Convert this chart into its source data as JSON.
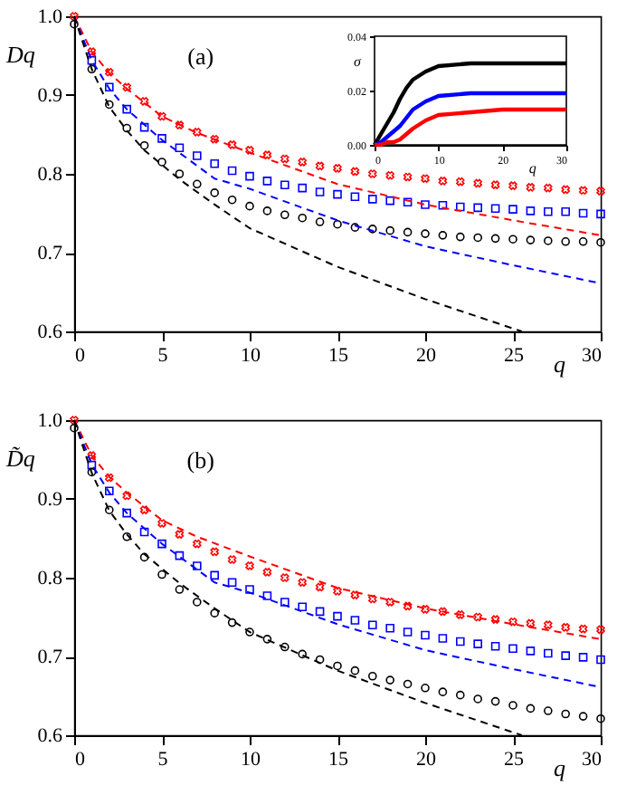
{
  "chart_data": [
    {
      "type": "scatter",
      "ylabel": "Dq",
      "xlabel": "q",
      "annotations": [
        "(a)"
      ],
      "xlim": [
        0,
        30
      ],
      "ylim": [
        0.6,
        1.0
      ],
      "xticks": [
        0,
        5,
        10,
        15,
        20,
        25,
        30
      ],
      "yticks": [
        0.6,
        0.7,
        0.8,
        0.9,
        {
          "value": 1.0,
          "label": "1.0"
        }
      ],
      "x": [
        0,
        1,
        2,
        3,
        4,
        5,
        6,
        7,
        8,
        9,
        10,
        11,
        12,
        13,
        14,
        15,
        16,
        17,
        18,
        19,
        20,
        21,
        22,
        23,
        24,
        25,
        26,
        27,
        28,
        29,
        30
      ],
      "series": [
        {
          "color": "#ff0000",
          "marker": "cross",
          "values": [
            1.0,
            0.955,
            0.929,
            0.91,
            0.892,
            0.873,
            0.862,
            0.853,
            0.844,
            0.837,
            0.83,
            0.824,
            0.819,
            0.815,
            0.81,
            0.807,
            0.803,
            0.8,
            0.798,
            0.796,
            0.794,
            0.791,
            0.79,
            0.788,
            0.786,
            0.785,
            0.783,
            0.782,
            0.78,
            0.779,
            0.778
          ]
        },
        {
          "color": "#0000ff",
          "marker": "square",
          "values": [
            null,
            0.944,
            0.91,
            0.882,
            0.859,
            0.845,
            0.833,
            0.823,
            0.813,
            0.804,
            0.797,
            0.791,
            0.786,
            0.782,
            0.777,
            0.774,
            0.771,
            0.768,
            0.766,
            0.764,
            0.761,
            0.76,
            0.758,
            0.757,
            0.756,
            0.755,
            0.753,
            0.752,
            0.752,
            0.75,
            0.749
          ]
        },
        {
          "color": "#000000",
          "marker": "circle",
          "values": [
            0.99,
            0.933,
            0.888,
            0.858,
            0.836,
            0.815,
            0.8,
            0.787,
            0.776,
            0.767,
            0.759,
            0.753,
            0.748,
            0.744,
            0.739,
            0.736,
            0.732,
            0.73,
            0.728,
            0.726,
            0.724,
            0.722,
            0.72,
            0.719,
            0.718,
            0.717,
            0.716,
            0.715,
            0.714,
            0.714,
            0.713
          ]
        },
        {
          "type": "line",
          "line_style": "dashed",
          "color": "#ff0000",
          "x": [
            0,
            1,
            2,
            3,
            5,
            7,
            10,
            15,
            20,
            25,
            30
          ],
          "values": [
            1.0,
            0.955,
            0.928,
            0.908,
            0.873,
            0.852,
            0.827,
            0.787,
            0.761,
            0.741,
            0.722
          ]
        },
        {
          "type": "line",
          "line_style": "dashed",
          "color": "#0000ff",
          "x": [
            0,
            1,
            2,
            3,
            5,
            8,
            10,
            15,
            20,
            25,
            30
          ],
          "values": [
            1.0,
            0.944,
            0.908,
            0.882,
            0.843,
            0.794,
            0.781,
            0.741,
            0.708,
            0.684,
            0.661
          ]
        },
        {
          "type": "line",
          "line_style": "dashed",
          "color": "#000000",
          "x": [
            0,
            1,
            2,
            3,
            4,
            6,
            8,
            10,
            15,
            20,
            25.5
          ],
          "values": [
            1.0,
            0.933,
            0.885,
            0.855,
            0.83,
            0.793,
            0.761,
            0.731,
            0.682,
            0.641,
            0.6
          ]
        }
      ]
    },
    {
      "type": "line",
      "ylabel": "σ",
      "xlabel": "q",
      "xlim": [
        0,
        30
      ],
      "ylim": [
        0,
        0.04
      ],
      "xticks": [
        0,
        10,
        20,
        30
      ],
      "yticks": [
        {
          "value": 0,
          "label": "0.00"
        },
        {
          "value": 0.02,
          "label": "0.02"
        },
        {
          "value": 0.04,
          "label": "0.04"
        }
      ],
      "x": [
        0,
        1,
        2,
        3,
        4,
        5,
        6,
        8,
        10,
        15,
        20,
        30
      ],
      "series": [
        {
          "color": "#000000",
          "values": [
            0,
            0.004,
            0.008,
            0.012,
            0.017,
            0.021,
            0.024,
            0.027,
            0.029,
            0.03,
            0.03,
            0.03
          ]
        },
        {
          "color": "#0000ff",
          "values": [
            0,
            0.001,
            0.003,
            0.005,
            0.007,
            0.01,
            0.013,
            0.016,
            0.018,
            0.019,
            0.019,
            0.019
          ]
        },
        {
          "color": "#ff0000",
          "values": [
            0,
            0,
            0.001,
            0.001,
            0.002,
            0.004,
            0.006,
            0.009,
            0.011,
            0.012,
            0.013,
            0.013
          ]
        }
      ]
    },
    {
      "type": "scatter",
      "ylabel": "D̃q",
      "xlabel": "q",
      "annotations": [
        "(b)"
      ],
      "xlim": [
        0,
        30
      ],
      "ylim": [
        0.6,
        1.0
      ],
      "xticks": [
        0,
        5,
        10,
        15,
        20,
        25,
        30
      ],
      "yticks": [
        0.6,
        0.7,
        0.8,
        0.9,
        {
          "value": 1.0,
          "label": "1.0"
        }
      ],
      "x": [
        0,
        1,
        2,
        3,
        4,
        5,
        6,
        7,
        8,
        9,
        10,
        11,
        12,
        13,
        14,
        15,
        16,
        17,
        18,
        19,
        20,
        21,
        22,
        23,
        24,
        25,
        26,
        27,
        28,
        29,
        30
      ],
      "series": [
        {
          "color": "#ff0000",
          "marker": "cross",
          "values": [
            1.0,
            0.955,
            0.927,
            0.904,
            0.886,
            0.869,
            0.855,
            0.843,
            0.833,
            0.823,
            0.815,
            0.807,
            0.8,
            0.794,
            0.788,
            0.783,
            0.778,
            0.773,
            0.769,
            0.764,
            0.76,
            0.757,
            0.753,
            0.75,
            0.747,
            0.744,
            0.742,
            0.74,
            0.737,
            0.735,
            0.734
          ]
        },
        {
          "color": "#0000ff",
          "marker": "square",
          "values": [
            null,
            0.943,
            0.91,
            0.882,
            0.858,
            0.843,
            0.828,
            0.815,
            0.803,
            0.794,
            0.785,
            0.777,
            0.769,
            0.763,
            0.757,
            0.751,
            0.746,
            0.74,
            0.736,
            0.731,
            0.727,
            0.723,
            0.719,
            0.716,
            0.713,
            0.71,
            0.707,
            0.704,
            0.701,
            0.699,
            0.696
          ]
        },
        {
          "color": "#000000",
          "marker": "circle",
          "values": [
            0.99,
            0.934,
            0.886,
            0.852,
            0.826,
            0.804,
            0.785,
            0.769,
            0.755,
            0.743,
            0.731,
            0.722,
            0.712,
            0.703,
            0.696,
            0.688,
            0.682,
            0.675,
            0.67,
            0.665,
            0.66,
            0.655,
            0.651,
            0.646,
            0.643,
            0.638,
            0.634,
            0.631,
            0.627,
            0.624,
            0.621
          ]
        },
        {
          "type": "line",
          "line_style": "dashed",
          "color": "#ff0000",
          "x": [
            0,
            1,
            2,
            3,
            5,
            7,
            10,
            15,
            20,
            25,
            30
          ],
          "values": [
            1.0,
            0.955,
            0.928,
            0.908,
            0.873,
            0.852,
            0.827,
            0.787,
            0.761,
            0.741,
            0.722
          ]
        },
        {
          "type": "line",
          "line_style": "dashed",
          "color": "#0000ff",
          "x": [
            0,
            1,
            2,
            3,
            5,
            8,
            10,
            15,
            20,
            25,
            30
          ],
          "values": [
            1.0,
            0.944,
            0.908,
            0.882,
            0.843,
            0.794,
            0.781,
            0.741,
            0.708,
            0.684,
            0.661
          ]
        },
        {
          "type": "line",
          "line_style": "dashed",
          "color": "#000000",
          "x": [
            0,
            1,
            2,
            3,
            4,
            6,
            8,
            10,
            15,
            20,
            25.5
          ],
          "values": [
            1.0,
            0.933,
            0.885,
            0.855,
            0.83,
            0.793,
            0.761,
            0.731,
            0.682,
            0.641,
            0.6
          ]
        }
      ]
    }
  ]
}
